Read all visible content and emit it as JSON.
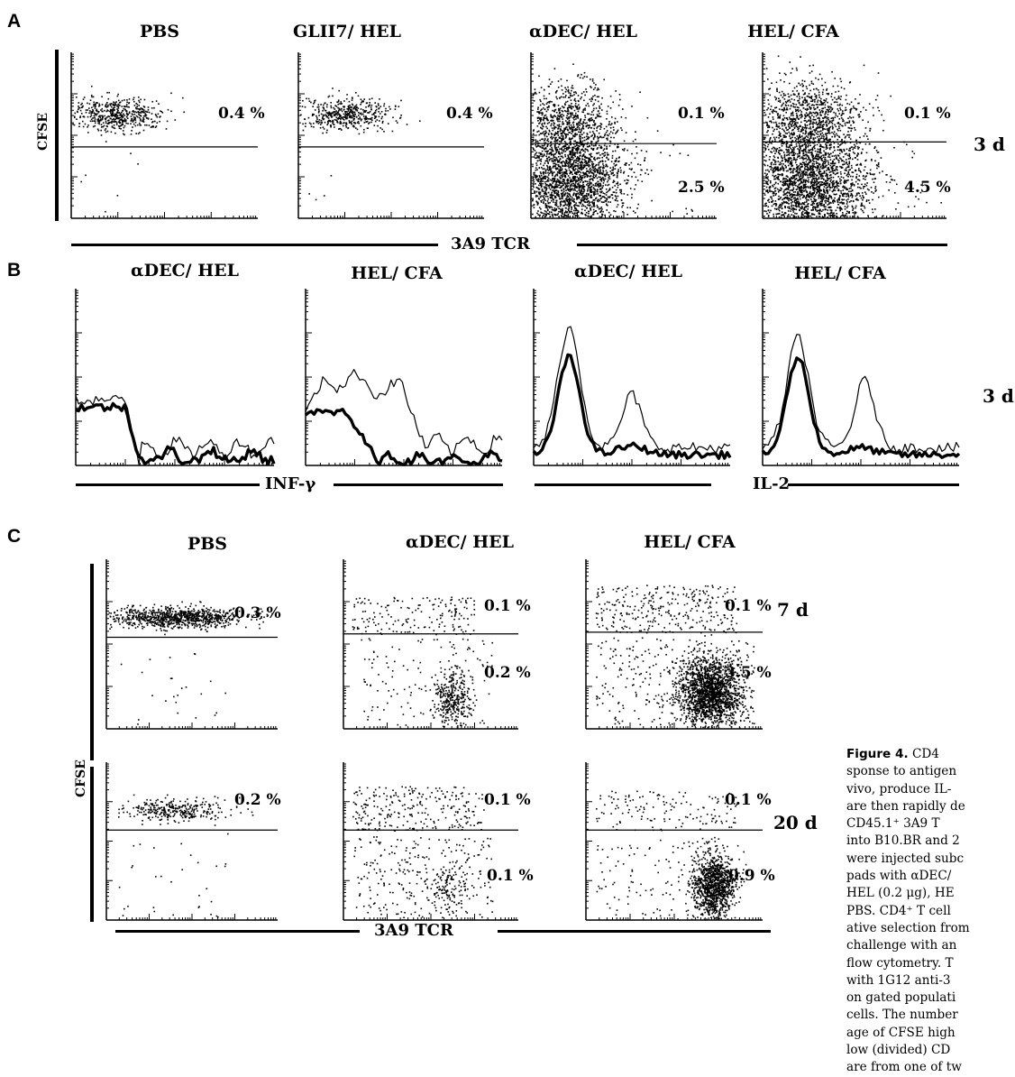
{
  "panels": {
    "A": {
      "letter": "A",
      "y_label": "CFSE",
      "x_label": "3A9 TCR",
      "timepoint": "3 d",
      "plots": [
        {
          "title": "PBS",
          "upper_pct": "0.4 %",
          "lower_pct": ""
        },
        {
          "title": "GLII7/ HEL",
          "upper_pct": "0.4 %",
          "lower_pct": ""
        },
        {
          "title": "αDEC/ HEL",
          "upper_pct": "0.1 %",
          "lower_pct": "2.5 %"
        },
        {
          "title": "HEL/ CFA",
          "upper_pct": "0.1 %",
          "lower_pct": "4.5 %"
        }
      ]
    },
    "B": {
      "letter": "B",
      "timepoint": "3 d",
      "x_label_left": "INF-γ",
      "x_label_right": "IL-2",
      "plots": [
        {
          "title": "αDEC/ HEL"
        },
        {
          "title": "HEL/ CFA"
        },
        {
          "title": "αDEC/ HEL"
        },
        {
          "title": "HEL/ CFA"
        }
      ]
    },
    "C": {
      "letter": "C",
      "y_label": "CFSE",
      "x_label": "3A9 TCR",
      "titles": [
        "PBS",
        "αDEC/ HEL",
        "HEL/ CFA"
      ],
      "rows": [
        {
          "timepoint": "7 d",
          "plots": [
            {
              "upper_pct": "0.3 %",
              "lower_pct": ""
            },
            {
              "upper_pct": "0.1 %",
              "lower_pct": "0.2 %"
            },
            {
              "upper_pct": "0.1 %",
              "lower_pct": "3.5 %"
            }
          ]
        },
        {
          "timepoint": "20 d",
          "plots": [
            {
              "upper_pct": "0.2 %",
              "lower_pct": ""
            },
            {
              "upper_pct": "0.1 %",
              "lower_pct": "0.1 %"
            },
            {
              "upper_pct": "0.1 %",
              "lower_pct": "0.9 %"
            }
          ]
        }
      ]
    }
  },
  "caption": {
    "figure_label": "Figure 4.",
    "lines": [
      "CD4",
      "sponse to antigen",
      "vivo, produce IL-",
      "are then rapidly de",
      "CD45.1⁺ 3A9 T",
      "into B10.BR and 2",
      "were injected subc",
      "pads with αDEC/",
      "HEL (0.2 μg), HE",
      "PBS. CD4⁺ T cell",
      "ative selection from",
      "challenge with an",
      "flow cytometry. T",
      "with 1G12 anti-3",
      "on gated populati",
      "cells. The number",
      "age of CFSE high",
      "low (divided) CD",
      "are from one of tw"
    ]
  }
}
